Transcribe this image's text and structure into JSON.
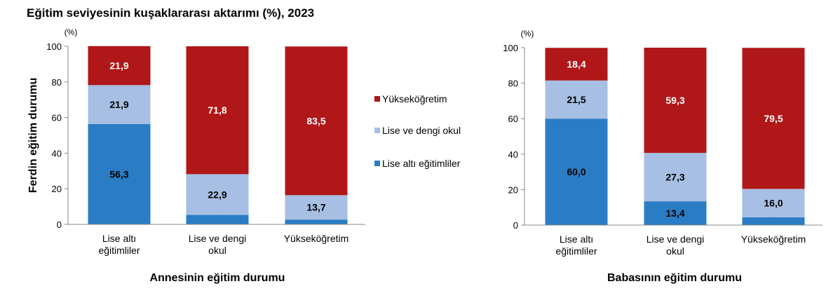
{
  "title": "Eğitim seviyesinin kuşaklararası aktarımı (%), 2023",
  "colors": {
    "yuksekogretim": "#B01718",
    "lise": "#A7BFE2",
    "lise_alti": "#2A7DC4",
    "axis": "#888888"
  },
  "legend": {
    "items": [
      {
        "label": "Yükseköğretim",
        "color": "#B01718"
      },
      {
        "label": "Lise ve dengi okul",
        "color": "#A7BFE2"
      },
      {
        "label": "Lise altı eğitimliler",
        "color": "#2A7DC4"
      }
    ]
  },
  "chart_data": [
    {
      "type": "bar",
      "stacked": true,
      "unit_label": "(%)",
      "ylabel": "Ferdin eğitim durumu",
      "xlabel": "Annesinin eğitim durumu",
      "ylim": [
        0,
        100
      ],
      "yticks": [
        "0",
        "20",
        "40",
        "60",
        "80",
        "100"
      ],
      "categories": [
        [
          "Lise altı",
          "eğitimliler"
        ],
        [
          "Lise ve dengi",
          "okul"
        ],
        [
          "Yükseköğretim"
        ]
      ],
      "series": [
        {
          "name": "Lise altı eğitimliler",
          "color": "#2A7DC4",
          "values": [
            56.3,
            5.3,
            2.7
          ],
          "labels": [
            "56,3",
            "5,3",
            "2,7"
          ]
        },
        {
          "name": "Lise ve dengi okul",
          "color": "#A7BFE2",
          "values": [
            21.9,
            22.9,
            13.7
          ],
          "labels": [
            "21,9",
            "22,9",
            "13,7"
          ]
        },
        {
          "name": "Yükseköğretim",
          "color": "#B01718",
          "values": [
            21.9,
            71.8,
            83.5
          ],
          "labels": [
            "21,9",
            "71,8",
            "83,5"
          ]
        }
      ]
    },
    {
      "type": "bar",
      "stacked": true,
      "unit_label": "(%)",
      "ylabel": "",
      "xlabel": "Babasının eğitim durumu",
      "ylim": [
        0,
        100
      ],
      "yticks": [
        "0",
        "20",
        "40",
        "60",
        "80",
        "100"
      ],
      "categories": [
        [
          "Lise altı",
          "eğitimliler"
        ],
        [
          "Lise ve dengi",
          "okul"
        ],
        [
          "Yükseköğretim"
        ]
      ],
      "series": [
        {
          "name": "Lise altı eğitimliler",
          "color": "#2A7DC4",
          "values": [
            60.0,
            13.4,
            4.4
          ],
          "labels": [
            "60,0",
            "13,4",
            "4,4"
          ]
        },
        {
          "name": "Lise ve dengi okul",
          "color": "#A7BFE2",
          "values": [
            21.5,
            27.3,
            16.0
          ],
          "labels": [
            "21,5",
            "27,3",
            "16,0"
          ]
        },
        {
          "name": "Yükseköğretim",
          "color": "#B01718",
          "values": [
            18.4,
            59.3,
            79.5
          ],
          "labels": [
            "18,4",
            "59,3",
            "79,5"
          ]
        }
      ]
    }
  ]
}
